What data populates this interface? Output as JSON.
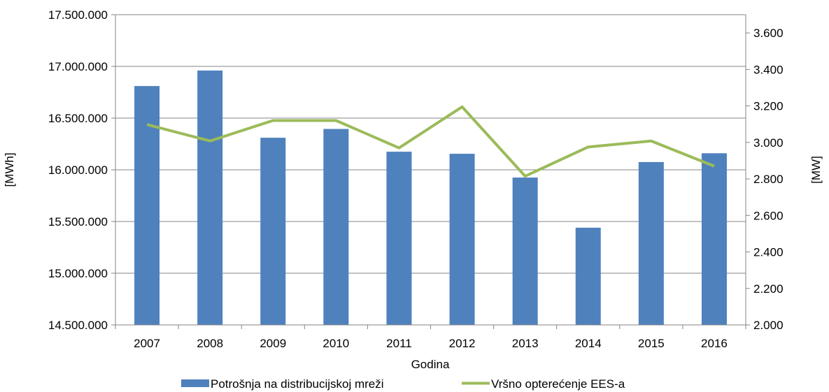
{
  "chart_data": {
    "type": "bar",
    "categories": [
      "2007",
      "2008",
      "2009",
      "2010",
      "2011",
      "2012",
      "2013",
      "2014",
      "2015",
      "2016"
    ],
    "series": [
      {
        "name": "Potrošnja na distribucijskoj mreži",
        "type": "bar",
        "axis": "left",
        "color": "#4F81BD",
        "values": [
          16810000,
          16960000,
          16310000,
          16395000,
          16175000,
          16155000,
          15925000,
          15440000,
          16075000,
          16160000
        ]
      },
      {
        "name": "Vršno opterećenje EES-a",
        "type": "line",
        "axis": "right",
        "color": "#9BBB59",
        "values": [
          3098,
          3008,
          3120,
          3120,
          2970,
          3195,
          2815,
          2975,
          3008,
          2870
        ]
      }
    ],
    "xlabel": "Godina",
    "ylabel": "[MWh]",
    "y2label": "[MW]",
    "ylim": [
      14500000,
      17500000
    ],
    "y2lim": [
      2000,
      3700
    ],
    "yticks": [
      "14.500.000",
      "15.000.000",
      "15.500.000",
      "16.000.000",
      "16.500.000",
      "17.000.000",
      "17.500.000"
    ],
    "y2ticks": [
      "2.000",
      "2.200",
      "2.400",
      "2.600",
      "2.800",
      "3.000",
      "3.200",
      "3.400",
      "3.600"
    ],
    "grid": true,
    "legend_position": "bottom"
  }
}
